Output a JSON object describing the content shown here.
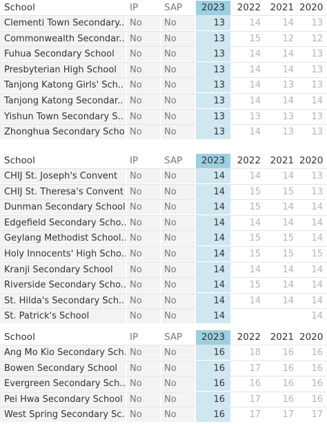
{
  "tables": [
    {
      "header": [
        "School",
        "IP",
        "SAP",
        "2023",
        "2022",
        "2021",
        "2020"
      ],
      "rows": [
        [
          "Clementi Town Secondary..",
          "No",
          "No",
          13,
          14,
          14,
          13
        ],
        [
          "Commonwealth Secondar..",
          "No",
          "No",
          13,
          15,
          12,
          12
        ],
        [
          "Fuhua Secondary School",
          "No",
          "No",
          13,
          14,
          14,
          13
        ],
        [
          "Presbyterian High School",
          "No",
          "No",
          13,
          14,
          14,
          13
        ],
        [
          "Tanjong Katong Girls' Sch..",
          "No",
          "No",
          13,
          14,
          13,
          13
        ],
        [
          "Tanjong Katong Secondar..",
          "No",
          "No",
          13,
          14,
          14,
          14
        ],
        [
          "Yishun Town Secondary S..",
          "No",
          "No",
          13,
          13,
          13,
          13
        ],
        [
          "Zhonghua Secondary Scho..",
          "No",
          "No",
          13,
          14,
          13,
          13
        ]
      ]
    },
    {
      "header": [
        "School",
        "IP",
        "SAP",
        "2023",
        "2022",
        "2021",
        "2020"
      ],
      "rows": [
        [
          "CHIJ St. Joseph's Convent",
          "No",
          "No",
          14,
          14,
          14,
          13
        ],
        [
          "CHIJ St. Theresa's Convent",
          "No",
          "No",
          14,
          15,
          15,
          13
        ],
        [
          "Dunman Secondary School",
          "No",
          "No",
          14,
          15,
          14,
          14
        ],
        [
          "Edgefield Secondary Scho..",
          "No",
          "No",
          14,
          14,
          14,
          14
        ],
        [
          "Geylang Methodist School..",
          "No",
          "No",
          14,
          15,
          15,
          14
        ],
        [
          "Holy Innocents' High Scho..",
          "No",
          "No",
          14,
          15,
          15,
          15
        ],
        [
          "Kranji Secondary School",
          "No",
          "No",
          14,
          14,
          14,
          14
        ],
        [
          "Riverside Secondary Scho..",
          "No",
          "No",
          14,
          15,
          14,
          14
        ],
        [
          "St. Hilda's Secondary Sch..",
          "No",
          "No",
          14,
          14,
          14,
          14
        ],
        [
          "St. Patrick's School",
          "No",
          "No",
          14,
          null,
          null,
          14
        ]
      ]
    },
    {
      "header": [
        "School",
        "IP",
        "SAP",
        "2023",
        "2022",
        "2021",
        "2020"
      ],
      "rows": [
        [
          "Ang Mo Kio Secondary Sch..",
          "No",
          "No",
          16,
          18,
          16,
          16
        ],
        [
          "Bowen Secondary School",
          "No",
          "No",
          16,
          17,
          16,
          16
        ],
        [
          "Evergreen Secondary Sch..",
          "No",
          "No",
          16,
          16,
          16,
          16
        ],
        [
          "Pei Hwa Secondary School",
          "No",
          "No",
          16,
          17,
          16,
          16
        ],
        [
          "West Spring Secondary Sc..",
          "No",
          "No",
          16,
          17,
          17,
          17
        ]
      ]
    }
  ]
}
